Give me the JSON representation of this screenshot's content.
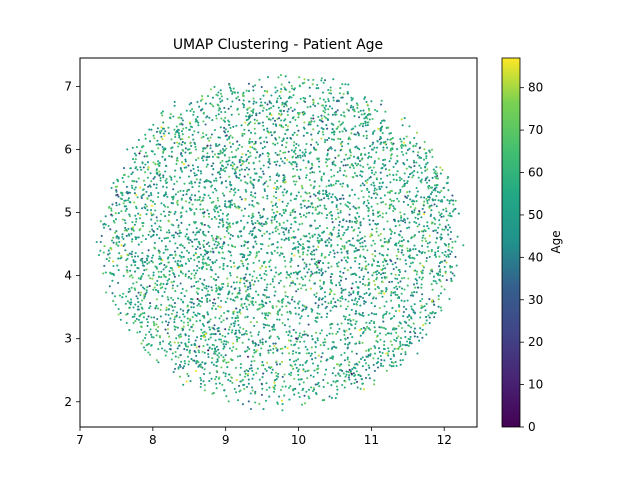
{
  "chart_data": {
    "type": "scatter",
    "title": "UMAP Clustering - Patient Age",
    "xlabel": "",
    "ylabel": "",
    "xlim": [
      7.0,
      12.45
    ],
    "ylim": [
      1.6,
      7.45
    ],
    "xticks": [
      7,
      8,
      9,
      10,
      11,
      12
    ],
    "yticks": [
      2,
      3,
      4,
      5,
      6,
      7
    ],
    "grid": false,
    "colormap": "viridis",
    "colorbar": {
      "label": "Age",
      "range": [
        0,
        87
      ],
      "ticks": [
        0,
        10,
        20,
        30,
        40,
        50,
        60,
        70,
        80
      ]
    },
    "point_cloud": {
      "count": 5000,
      "center": [
        9.75,
        4.55
      ],
      "radius_x": 2.5,
      "radius_y": 2.65,
      "age_mean": 55,
      "age_sd": 12,
      "age_min": 0,
      "age_max": 87
    }
  }
}
